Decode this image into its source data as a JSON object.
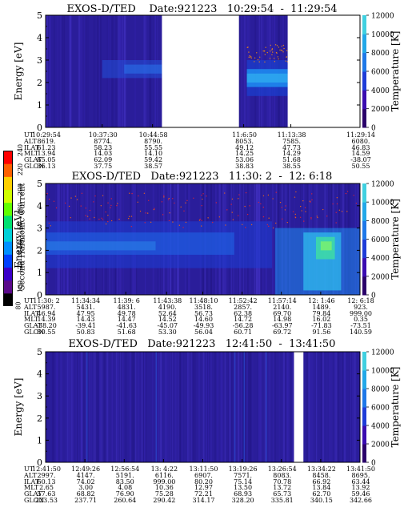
{
  "colors": {
    "background_spectrogram": "#2a1d9a",
    "colorscale": [
      "#000000",
      "#5a0a8a",
      "#3a00c8",
      "#0040ff",
      "#0090ff",
      "#00d0d8",
      "#00e070",
      "#60ff00",
      "#d0ff00",
      "#ffd000",
      "#ff6000",
      "#ff0000"
    ],
    "temperature_scale": [
      "#2a006a",
      "#3a0cb0",
      "#1e3cd8",
      "#1e78e8",
      "#22a8e8",
      "#40d0e0"
    ]
  },
  "colorbar_left": {
    "label": "Second Harmonic Current",
    "ticks": [
      "80",
      "100",
      "120",
      "140",
      "160",
      "180",
      "200",
      "220",
      "240"
    ]
  },
  "panels": [
    {
      "title": "EXOS-D/TED    Date:921223   10:29:54  -  11:29:54",
      "ylabel": "Energy [eV]",
      "yticks": [
        "0",
        "1",
        "2",
        "3",
        "4",
        "5"
      ],
      "right_label": "Temperature [K]",
      "right_ticks": [
        "0",
        "2000",
        "4000",
        "6000",
        "8000",
        "10000",
        "12000"
      ],
      "eph_labels": [
        "UT",
        "ALT",
        "ILAT",
        "MLT",
        "GLAT",
        "GLON"
      ],
      "eph_columns": [
        {
          "x": 0.0,
          "vals": [
            "10:29:54",
            "8619.",
            "61.23",
            "13.94",
            "65.05",
            "36.13"
          ]
        },
        {
          "x": 0.18,
          "vals": [
            "10:37:30",
            "8774.",
            "58.23",
            "14.03",
            "62.09",
            "37.75"
          ]
        },
        {
          "x": 0.34,
          "vals": [
            "10:44:58",
            "8790.",
            "55.55",
            "14.10",
            "59.42",
            "38.57"
          ]
        },
        {
          "x": 0.63,
          "vals": [
            "11:6:50",
            "8053.",
            "49.12",
            "14.25",
            "53.06",
            "38.83"
          ]
        },
        {
          "x": 0.78,
          "vals": [
            "11:13:38",
            "7585.",
            "47.73",
            "14.29",
            "51.68",
            "38.55"
          ]
        },
        {
          "x": 1.0,
          "vals": [
            "11:29:14",
            "6080.",
            "46.83",
            "14.59",
            "-38.07",
            "50.55"
          ]
        }
      ],
      "data_gaps": [
        [
          0.37,
          0.615
        ],
        [
          0.77,
          1.0
        ]
      ]
    },
    {
      "title": "EXOS-D/TED   Date:921223   11:30: 2  -  12: 6:18",
      "ylabel": "Energy [eV]",
      "yticks": [
        "0",
        "1",
        "2",
        "3",
        "4",
        "5"
      ],
      "right_label": "Temperature [K]",
      "right_ticks": [
        "0",
        "2000",
        "4000",
        "6000",
        "8000",
        "10000",
        "12000"
      ],
      "eph_labels": [
        "UT",
        "ALT",
        "ILAT",
        "MLT",
        "GLAT",
        "GLON"
      ],
      "eph_columns": [
        {
          "x": 0.0,
          "vals": [
            "11:30: 2",
            "5987.",
            "46.94",
            "14.39",
            "-38.20",
            "50.55"
          ]
        },
        {
          "x": 0.125,
          "vals": [
            "11:34:34",
            "5431.",
            "47.95",
            "14.43",
            "-39.41",
            "50.83"
          ]
        },
        {
          "x": 0.255,
          "vals": [
            "11:39: 6",
            "4831.",
            "49.78",
            "14.47",
            "-41.63",
            "51.68"
          ]
        },
        {
          "x": 0.385,
          "vals": [
            "11:43:38",
            "4190.",
            "52.64",
            "14.52",
            "-45.07",
            "53.30"
          ]
        },
        {
          "x": 0.5,
          "vals": [
            "11:48:10",
            "3518.",
            "56.73",
            "14.60",
            "-49.93",
            "56.04"
          ]
        },
        {
          "x": 0.625,
          "vals": [
            "11:52:42",
            "2857.",
            "62.38",
            "14.72",
            "-56.28",
            "60.71"
          ]
        },
        {
          "x": 0.75,
          "vals": [
            "11:57:14",
            "2140.",
            "69.70",
            "14.98",
            "-63.97",
            "69.72"
          ]
        },
        {
          "x": 0.875,
          "vals": [
            "12: 1:46",
            "1489.",
            "79.84",
            "16.02",
            "-71.83",
            "91.56"
          ]
        },
        {
          "x": 1.0,
          "vals": [
            "12: 6:18",
            "923.",
            "999.00",
            "0.35",
            "-73.51",
            "140.59"
          ]
        }
      ]
    },
    {
      "title": "EXOS-D/TED   Date:921223   12:41:50  -  13:41:50",
      "ylabel": "Energy [eV]",
      "yticks": [
        "0",
        "1",
        "2",
        "3",
        "4",
        "5"
      ],
      "right_label": "Temperature [K]",
      "right_ticks": [
        "0",
        "2000",
        "4000",
        "6000",
        "8000",
        "10000",
        "12000"
      ],
      "eph_labels": [
        "UT",
        "ALT",
        "ILAT",
        "MLT",
        "GLAT",
        "GLON"
      ],
      "eph_columns": [
        {
          "x": 0.0,
          "vals": [
            "12:41:50",
            "2997.",
            "60.13",
            "2.65",
            "57.63",
            "223.53"
          ]
        },
        {
          "x": 0.125,
          "vals": [
            "12:49:26",
            "4147.",
            "74.02",
            "3.00",
            "68.82",
            "237.71"
          ]
        },
        {
          "x": 0.25,
          "vals": [
            "12:56:54",
            "5191.",
            "83.50",
            "4.08",
            "76.90",
            "260.64"
          ]
        },
        {
          "x": 0.375,
          "vals": [
            "13: 4:22",
            "6116.",
            "999.00",
            "10.36",
            "75.28",
            "290.42"
          ]
        },
        {
          "x": 0.5,
          "vals": [
            "13:11:50",
            "6907.",
            "80.20",
            "12.97",
            "72.21",
            "314.17"
          ]
        },
        {
          "x": 0.625,
          "vals": [
            "13:19:26",
            "7571.",
            "75.14",
            "13.50",
            "68.93",
            "328.20"
          ]
        },
        {
          "x": 0.75,
          "vals": [
            "13:26:54",
            "8083.",
            "70.78",
            "13.72",
            "65.73",
            "335.81"
          ]
        },
        {
          "x": 0.875,
          "vals": [
            "13:34:22",
            "8458.",
            "66.92",
            "13.84",
            "62.70",
            "340.15"
          ]
        },
        {
          "x": 1.0,
          "vals": [
            "13:41:50",
            "8695.",
            "63.44",
            "13.92",
            "59.46",
            "342.66"
          ]
        }
      ],
      "data_gaps": [
        [
          0.79,
          0.82
        ]
      ]
    }
  ]
}
